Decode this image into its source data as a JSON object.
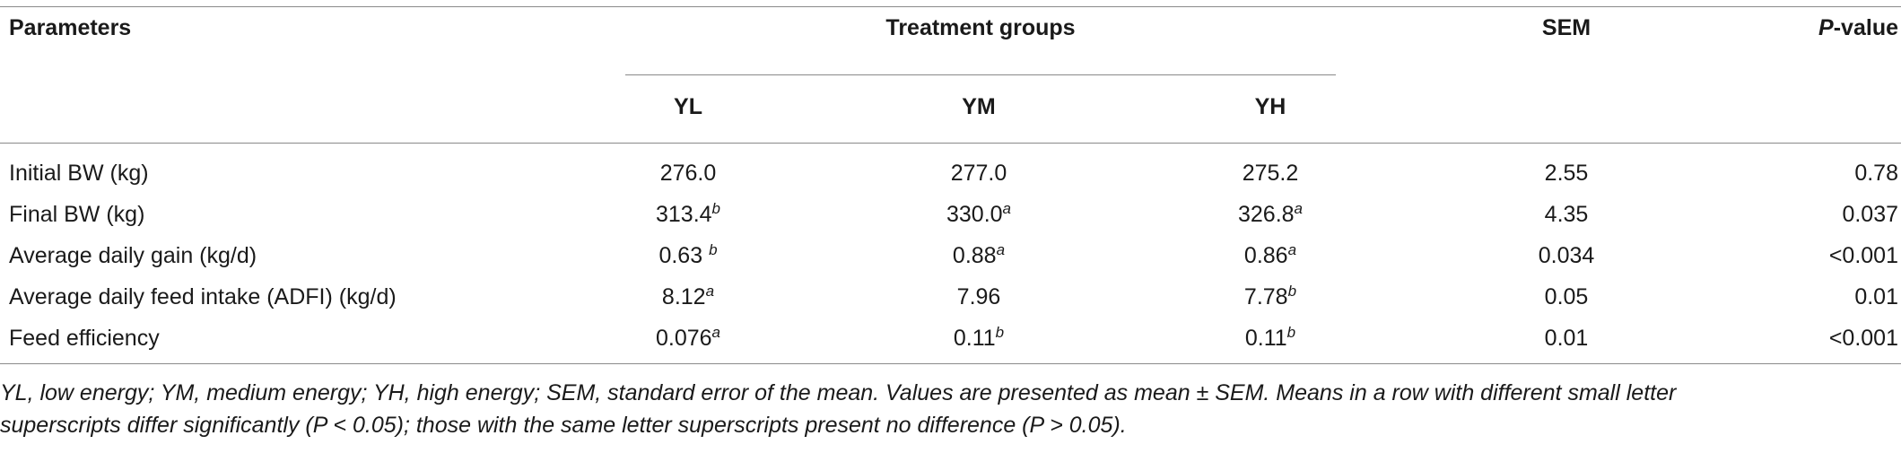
{
  "table": {
    "headers": {
      "parameters": "Parameters",
      "treatment_groups": "Treatment groups",
      "sem": "SEM",
      "p_value_italic": "P",
      "p_value_rest": "-value",
      "yl": "YL",
      "ym": "YM",
      "yh": "YH"
    },
    "rows": [
      {
        "label": "Initial BW (kg)",
        "yl": "276.0",
        "yl_sup": "",
        "ym": "277.0",
        "ym_sup": "",
        "yh": "275.2",
        "yh_sup": "",
        "sem": "2.55",
        "p": "0.78"
      },
      {
        "label": "Final BW (kg)",
        "yl": "313.4",
        "yl_sup": "b",
        "ym": "330.0",
        "ym_sup": "a",
        "yh": "326.8",
        "yh_sup": "a",
        "sem": "4.35",
        "p": "0.037"
      },
      {
        "label": "Average daily gain (kg/d)",
        "yl": "0.63 ",
        "yl_sup": "b",
        "ym": "0.88",
        "ym_sup": "a",
        "yh": "0.86",
        "yh_sup": "a",
        "sem": "0.034",
        "p": "<0.001"
      },
      {
        "label": "Average daily feed intake (ADFI) (kg/d)",
        "yl": "8.12",
        "yl_sup": "a",
        "ym": "7.96",
        "ym_sup": "",
        "yh": "7.78",
        "yh_sup": "b",
        "sem": "0.05",
        "p": "0.01"
      },
      {
        "label": "Feed efficiency",
        "yl": "0.076",
        "yl_sup": "a",
        "ym": "0.11",
        "ym_sup": "b",
        "yh": "0.11",
        "yh_sup": "b",
        "sem": "0.01",
        "p": "<0.001"
      }
    ]
  },
  "footnote": {
    "line1": "YL, low energy; YM, medium energy; YH, high energy; SEM, standard error of the mean. Values are presented as mean ± SEM. Means in a row with different small letter",
    "line2": "superscripts differ significantly (P < 0.05); those with the same letter superscripts present no difference (P > 0.05)."
  }
}
